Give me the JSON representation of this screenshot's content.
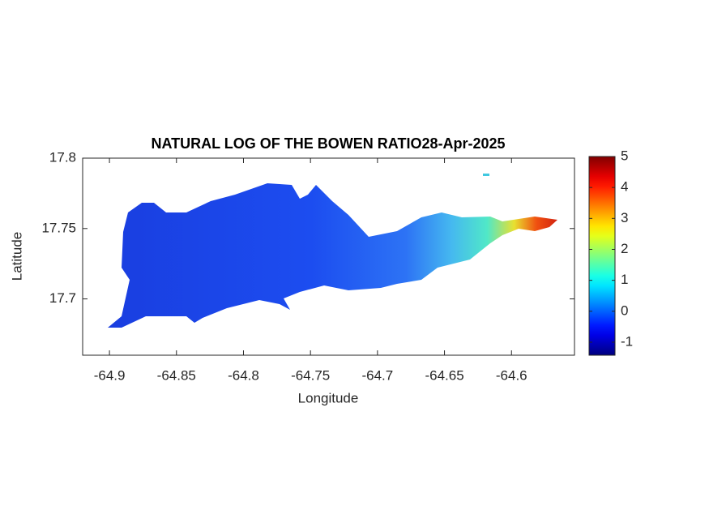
{
  "chart_data": {
    "type": "map",
    "title": "NATURAL LOG OF THE BOWEN RATIO28-Apr-2025",
    "x_label": "Longitude",
    "y_label": "Latitude",
    "xlim": [
      -64.92,
      -64.553
    ],
    "xticks": [
      -64.9,
      -64.85,
      -64.8,
      -64.75,
      -64.7,
      -64.65,
      -64.6
    ],
    "ylim": [
      17.66,
      17.8
    ],
    "yticks": [
      17.7,
      17.75,
      17.8
    ],
    "colorbar": {
      "clim": [
        -1.42,
        5
      ],
      "ticks": [
        -1,
        0,
        1,
        2,
        3,
        4,
        5
      ],
      "colormap": "jet"
    }
  }
}
